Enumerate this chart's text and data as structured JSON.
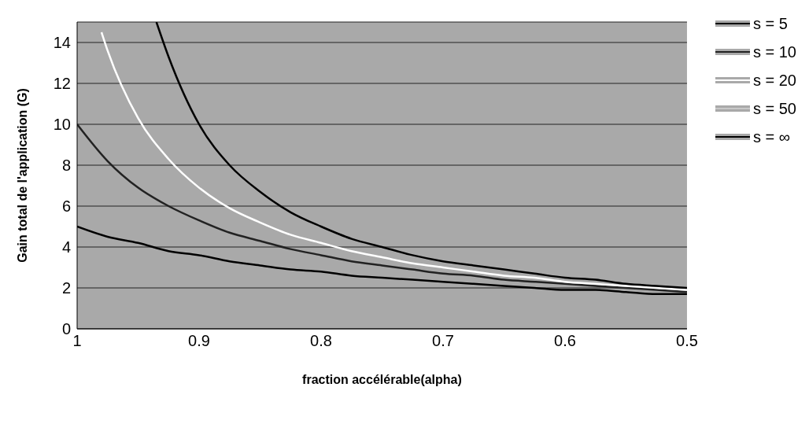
{
  "chart_data": {
    "type": "line",
    "xlabel": "fraction accélérable(alpha)",
    "ylabel": "Gain total de l'application (G)",
    "x": [
      1,
      0.975,
      0.95,
      0.925,
      0.9,
      0.875,
      0.85,
      0.825,
      0.8,
      0.775,
      0.75,
      0.725,
      0.7,
      0.675,
      0.65,
      0.625,
      0.6,
      0.575,
      0.55,
      0.525,
      0.5
    ],
    "series": [
      {
        "name": "s = 5",
        "color": "#000000",
        "values": [
          5,
          4.5,
          4.2,
          3.8,
          3.6,
          3.3,
          3.1,
          2.9,
          2.8,
          2.6,
          2.5,
          2.4,
          2.3,
          2.2,
          2.1,
          2.0,
          1.9,
          1.9,
          1.8,
          1.7,
          1.7
        ]
      },
      {
        "name": "s = 10",
        "color": "#222222",
        "values": [
          10,
          8.2,
          6.9,
          6.0,
          5.3,
          4.7,
          4.3,
          3.9,
          3.6,
          3.3,
          3.1,
          2.9,
          2.7,
          2.6,
          2.4,
          2.3,
          2.2,
          2.1,
          2.0,
          1.9,
          1.8
        ]
      },
      {
        "name": "s = 20",
        "color": "#ffffff",
        "x": [
          0.98,
          0.975,
          0.95,
          0.925,
          0.9,
          0.875,
          0.85,
          0.825,
          0.8,
          0.775,
          0.75,
          0.725,
          0.7,
          0.675,
          0.65,
          0.625,
          0.6,
          0.575,
          0.55,
          0.525,
          0.5
        ],
        "values": [
          14.5,
          13.6,
          10.3,
          8.3,
          6.9,
          5.9,
          5.2,
          4.6,
          4.2,
          3.8,
          3.5,
          3.2,
          3.0,
          2.8,
          2.6,
          2.5,
          2.3,
          2.2,
          2.1,
          2.0,
          1.9
        ]
      },
      {
        "name": "s = 50",
        "color": "#c8c8c8",
        "values": [
          null,
          null,
          null,
          null,
          null,
          null,
          null,
          null,
          null,
          null,
          null,
          null,
          null,
          null,
          null,
          null,
          null,
          null,
          null,
          null,
          null
        ]
      },
      {
        "name": "s = ∞",
        "color": "#000000",
        "x": [
          0.935,
          0.925,
          0.9,
          0.875,
          0.85,
          0.825,
          0.8,
          0.775,
          0.75,
          0.725,
          0.7,
          0.675,
          0.65,
          0.625,
          0.6,
          0.575,
          0.55,
          0.525,
          0.5
        ],
        "values": [
          15,
          13.3,
          10,
          8,
          6.7,
          5.7,
          5,
          4.4,
          4,
          3.6,
          3.3,
          3.1,
          2.9,
          2.7,
          2.5,
          2.4,
          2.2,
          2.1,
          2.0
        ]
      }
    ],
    "xlim": [
      1,
      0.5
    ],
    "xticks": [
      1,
      0.9,
      0.8,
      0.7,
      0.6,
      0.5
    ],
    "ylim": [
      0,
      15
    ],
    "yticks": [
      0,
      2,
      4,
      6,
      8,
      10,
      12,
      14
    ],
    "grid": "y",
    "legend": "top right",
    "marker": "none",
    "line_style": "solid"
  }
}
